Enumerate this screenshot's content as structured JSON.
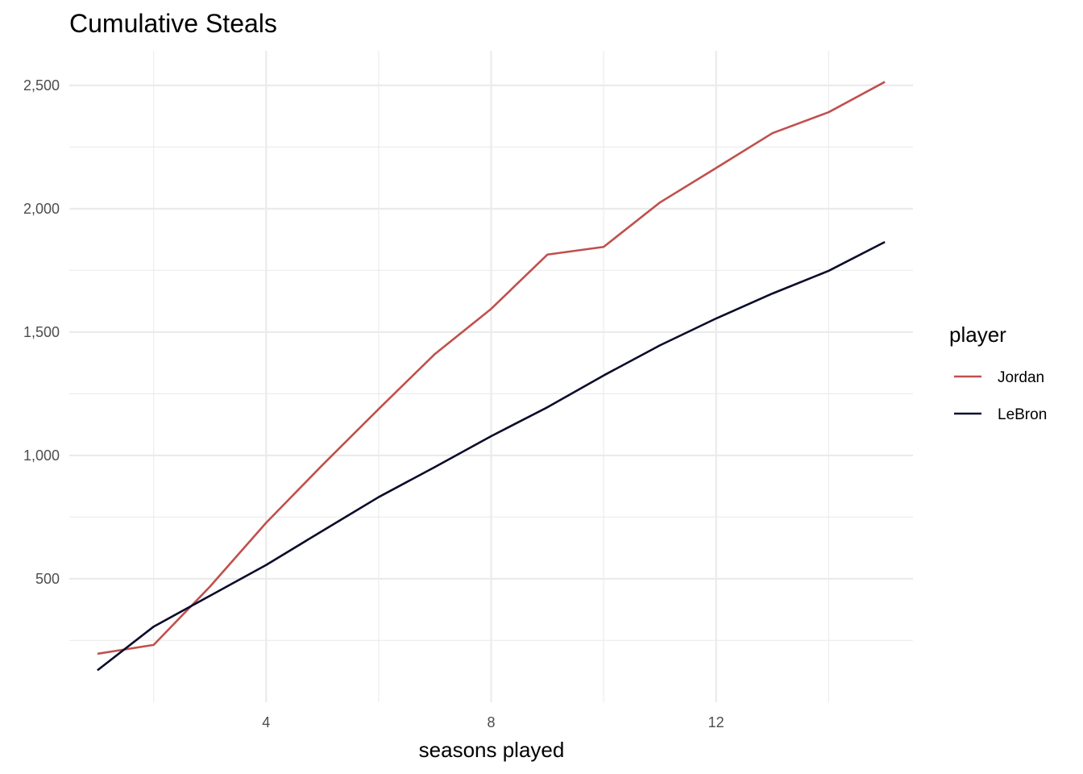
{
  "chart_data": {
    "type": "line",
    "title": "Cumulative Steals",
    "xlabel": "seasons played",
    "ylabel": "",
    "xlim": [
      0.5,
      15.5
    ],
    "ylim": [
      -0.5,
      2640
    ],
    "x_ticks": [
      4,
      8,
      12
    ],
    "x_tick_labels": [
      "4",
      "8",
      "12"
    ],
    "x_minor_ticks": [
      2,
      6,
      10,
      14
    ],
    "y_ticks": [
      500,
      1000,
      1500,
      2000,
      2500
    ],
    "y_tick_labels": [
      "500",
      "1,000",
      "1,500",
      "2,000",
      "2,500"
    ],
    "y_minor_ticks": [
      250,
      750,
      1250,
      1750,
      2250
    ],
    "grid": true,
    "legend": {
      "title": "player",
      "position": "right"
    },
    "series": [
      {
        "name": "Jordan",
        "color": "#c0504d",
        "x": [
          1,
          2,
          3,
          4,
          5,
          6,
          7,
          8,
          9,
          10,
          11,
          12,
          13,
          14,
          15
        ],
        "values": [
          196,
          232,
          468,
          727,
          961,
          1188,
          1411,
          1594,
          1814,
          1845,
          2025,
          2165,
          2306,
          2391,
          2514
        ]
      },
      {
        "name": "LeBron",
        "color": "#0b0c2a",
        "x": [
          1,
          2,
          3,
          4,
          5,
          6,
          7,
          8,
          9,
          10,
          11,
          12,
          13,
          14,
          15
        ],
        "values": [
          129,
          306,
          431,
          556,
          694,
          831,
          953,
          1078,
          1195,
          1324,
          1446,
          1555,
          1656,
          1748,
          1865
        ]
      }
    ]
  }
}
